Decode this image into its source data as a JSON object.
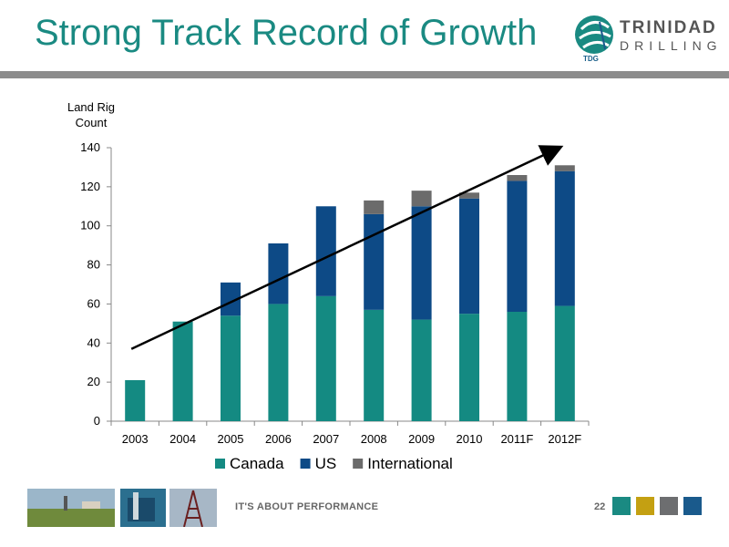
{
  "slide": {
    "title": "Strong Track Record of Growth",
    "logo_line1": "TRINIDAD",
    "logo_line2": "DRILLING",
    "logo_abbrev": "TDG",
    "footer_text": "IT'S ABOUT PERFORMANCE",
    "page_number": "22",
    "footer_swatches": [
      "#1a8a82",
      "#c4a012",
      "#6d6e70",
      "#1a5a8c"
    ]
  },
  "chart_data": {
    "type": "bar",
    "stacked": true,
    "title": "",
    "ylabel": "Land Rig Count",
    "xlabel": "",
    "categories": [
      "2003",
      "2004",
      "2005",
      "2006",
      "2007",
      "2008",
      "2009",
      "2010",
      "2011F",
      "2012F"
    ],
    "ylim": [
      0,
      140
    ],
    "yticks": [
      0,
      20,
      40,
      60,
      80,
      100,
      120,
      140
    ],
    "series": [
      {
        "name": "Canada",
        "color": "#148a82",
        "values": [
          21,
          51,
          54,
          60,
          64,
          57,
          52,
          55,
          56,
          59
        ]
      },
      {
        "name": "US",
        "color": "#0d4a86",
        "values": [
          0,
          0,
          17,
          31,
          46,
          49,
          58,
          59,
          67,
          69
        ]
      },
      {
        "name": "International",
        "color": "#6b6b6b",
        "values": [
          0,
          0,
          0,
          0,
          0,
          7,
          8,
          3,
          3,
          3
        ]
      }
    ],
    "legend_position": "bottom",
    "grid": false,
    "annotations": [
      {
        "type": "trend-arrow",
        "from": {
          "x": "2003",
          "y": 37
        },
        "to": {
          "x": "2012F",
          "y": 140
        }
      }
    ]
  }
}
